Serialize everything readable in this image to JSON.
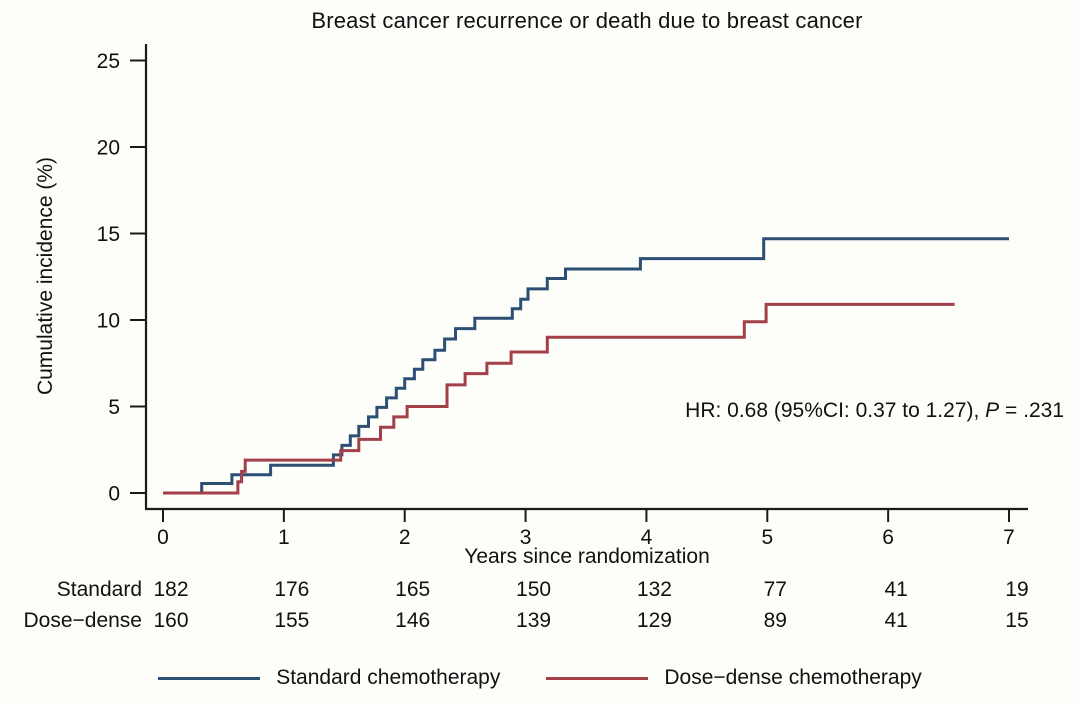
{
  "chart_data": {
    "type": "line",
    "subtype": "step-cumulative-incidence",
    "title": "Breast cancer recurrence or death due to breast cancer",
    "xlabel": "Years since randomization",
    "ylabel": "Cumulative incidence (%)",
    "xlim": [
      0,
      7
    ],
    "ylim": [
      0,
      25
    ],
    "x_ticks": [
      0,
      1,
      2,
      3,
      4,
      5,
      6,
      7
    ],
    "y_ticks": [
      0,
      5,
      10,
      15,
      20,
      25
    ],
    "grid": "off",
    "legend_position": "bottom-center",
    "annotation": {
      "prefix": "HR: 0.68 (95%CI: 0.37 to 1.27), ",
      "italic_part": "P",
      "suffix": " = .231"
    },
    "series": [
      {
        "name": "Standard chemotherapy",
        "color": "#2D4F74",
        "points": [
          [
            0,
            0
          ],
          [
            0.32,
            0.55
          ],
          [
            0.57,
            1.05
          ],
          [
            0.89,
            1.6
          ],
          [
            1.41,
            2.2
          ],
          [
            1.48,
            2.75
          ],
          [
            1.55,
            3.3
          ],
          [
            1.62,
            3.85
          ],
          [
            1.7,
            4.4
          ],
          [
            1.77,
            4.95
          ],
          [
            1.85,
            5.5
          ],
          [
            1.93,
            6.05
          ],
          [
            2.0,
            6.6
          ],
          [
            2.08,
            7.15
          ],
          [
            2.15,
            7.7
          ],
          [
            2.25,
            8.25
          ],
          [
            2.33,
            8.9
          ],
          [
            2.42,
            9.5
          ],
          [
            2.58,
            10.1
          ],
          [
            2.89,
            10.65
          ],
          [
            2.96,
            11.2
          ],
          [
            3.02,
            11.8
          ],
          [
            3.18,
            12.4
          ],
          [
            3.33,
            12.95
          ],
          [
            3.95,
            13.55
          ],
          [
            4.97,
            14.7
          ],
          [
            7.0,
            14.7
          ]
        ]
      },
      {
        "name": "Dose−dense chemotherapy",
        "color": "#A23F49",
        "points": [
          [
            0,
            0
          ],
          [
            0.62,
            0.65
          ],
          [
            0.65,
            1.25
          ],
          [
            0.68,
            1.9
          ],
          [
            1.47,
            2.45
          ],
          [
            1.62,
            3.1
          ],
          [
            1.8,
            3.8
          ],
          [
            1.91,
            4.4
          ],
          [
            2.02,
            5.0
          ],
          [
            2.35,
            6.25
          ],
          [
            2.5,
            6.9
          ],
          [
            2.68,
            7.5
          ],
          [
            2.88,
            8.15
          ],
          [
            3.18,
            9.0
          ],
          [
            4.81,
            9.9
          ],
          [
            4.99,
            10.9
          ],
          [
            6.55,
            10.9
          ]
        ]
      }
    ],
    "risk_table": {
      "rows": [
        {
          "label": "Standard",
          "values": [
            182,
            176,
            165,
            150,
            132,
            77,
            41,
            19
          ]
        },
        {
          "label": "Dose−dense",
          "values": [
            160,
            155,
            146,
            139,
            129,
            89,
            41,
            15
          ]
        }
      ]
    },
    "legend": [
      {
        "label": "Standard chemotherapy",
        "color": "#2D4F74"
      },
      {
        "label": "Dose−dense chemotherapy",
        "color": "#A23F49"
      }
    ]
  }
}
